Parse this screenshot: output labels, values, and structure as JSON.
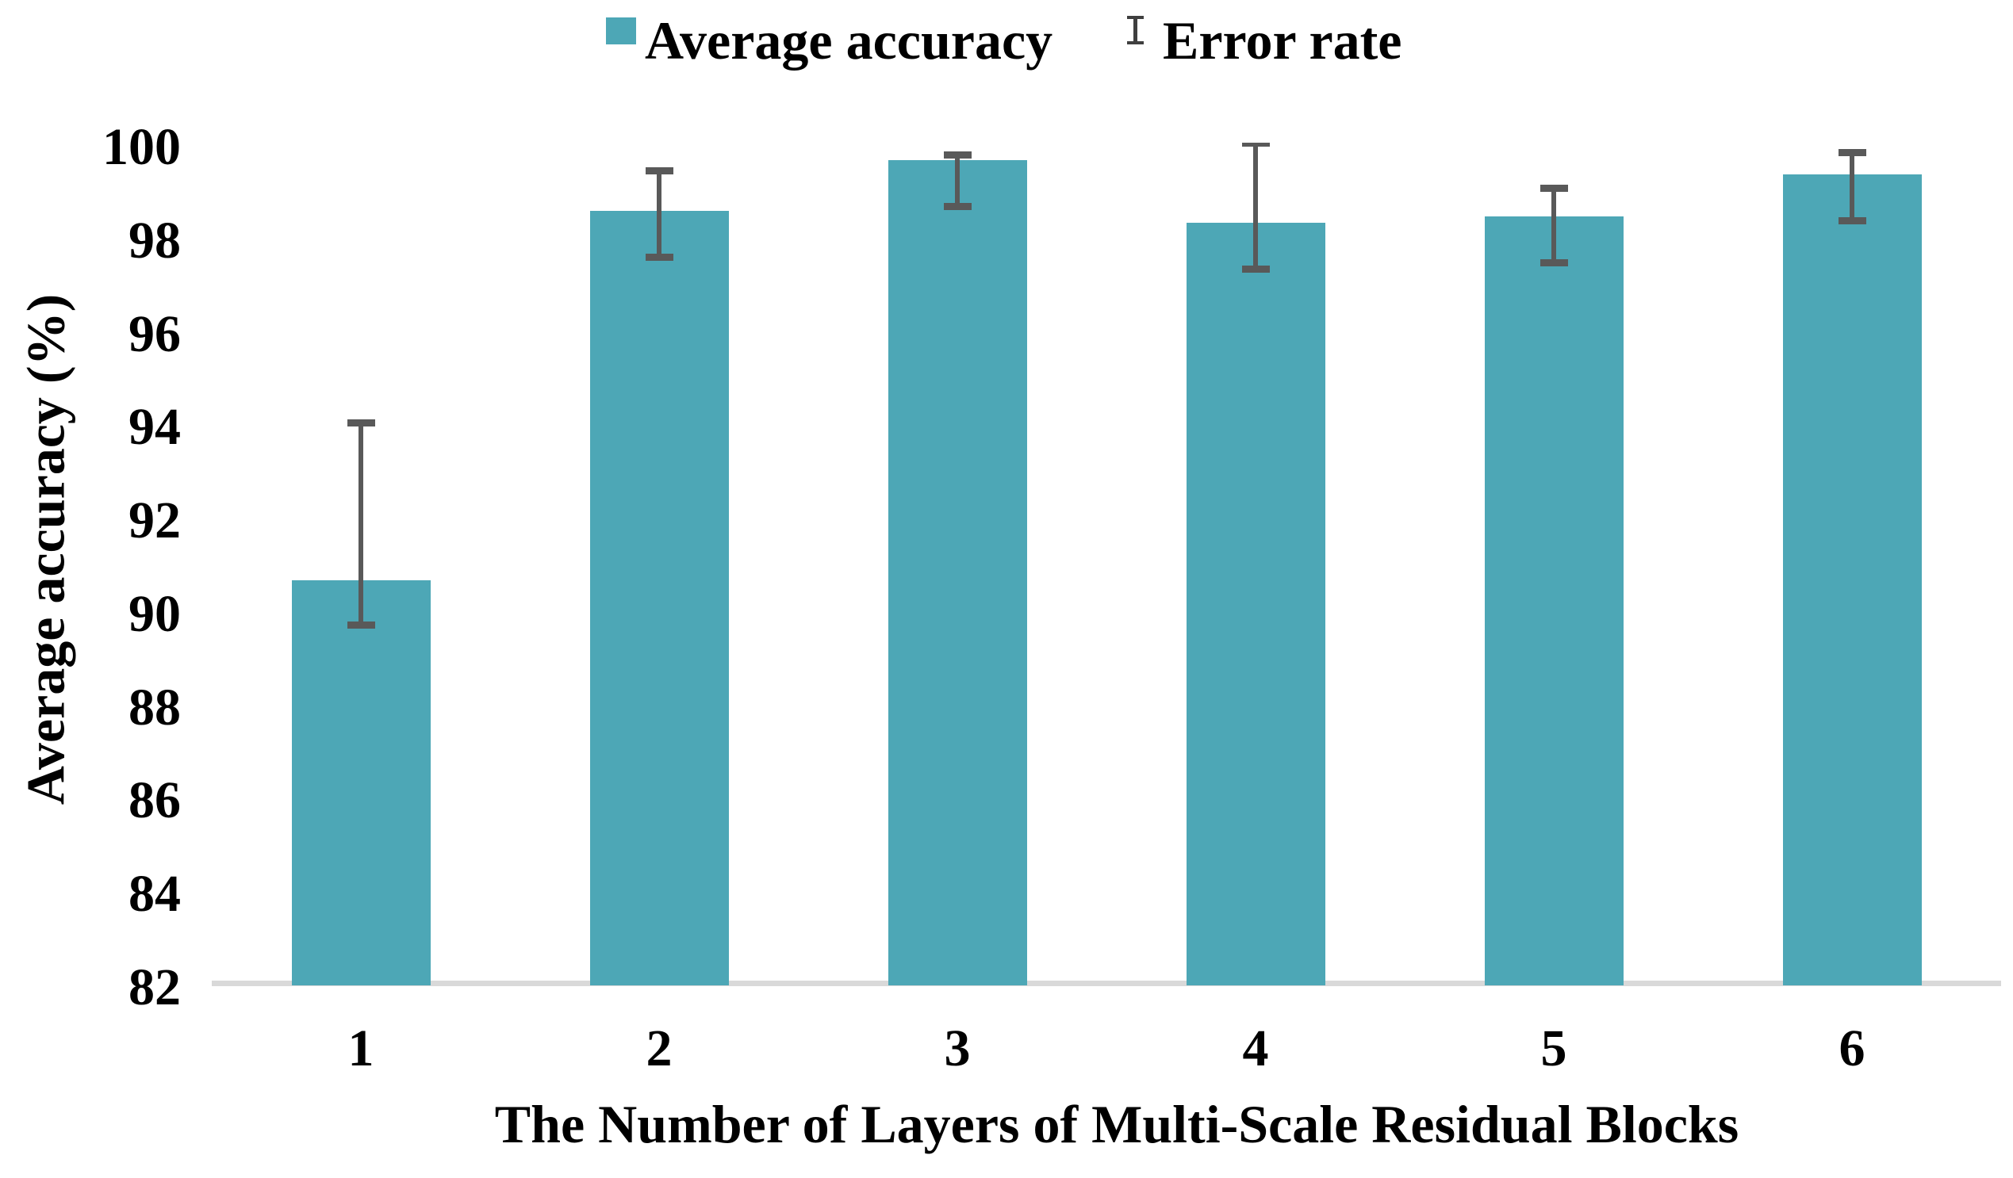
{
  "legend": {
    "accuracy_label": "Average accuracy",
    "error_label": "Error rate"
  },
  "colors": {
    "bar": "#4DA7B6",
    "error_bar": "#595959",
    "baseline": "#D9D9D9",
    "legend_error_icon": "#3F3F3F",
    "text": "#000000",
    "background": "#FFFFFF"
  },
  "chart_data": {
    "type": "bar",
    "title": "",
    "categories": [
      "1",
      "2",
      "3",
      "4",
      "5",
      "6"
    ],
    "series": [
      {
        "name": "Average accuracy",
        "values": [
          90.63,
          98.54,
          99.63,
          98.29,
          98.42,
          99.32
        ]
      }
    ],
    "error_bars": {
      "top": [
        94.0,
        99.41,
        99.75,
        100.0,
        99.03,
        99.8
      ],
      "bottom": [
        89.68,
        97.55,
        98.64,
        97.3,
        97.44,
        98.34
      ]
    },
    "xlabel": "The Number of Layers of Multi-Scale Residual Blocks",
    "ylabel": "Average accuracy (%)",
    "ylim": [
      82,
      100
    ],
    "ytick_step": 2,
    "grid": false,
    "legend_position": "top"
  }
}
